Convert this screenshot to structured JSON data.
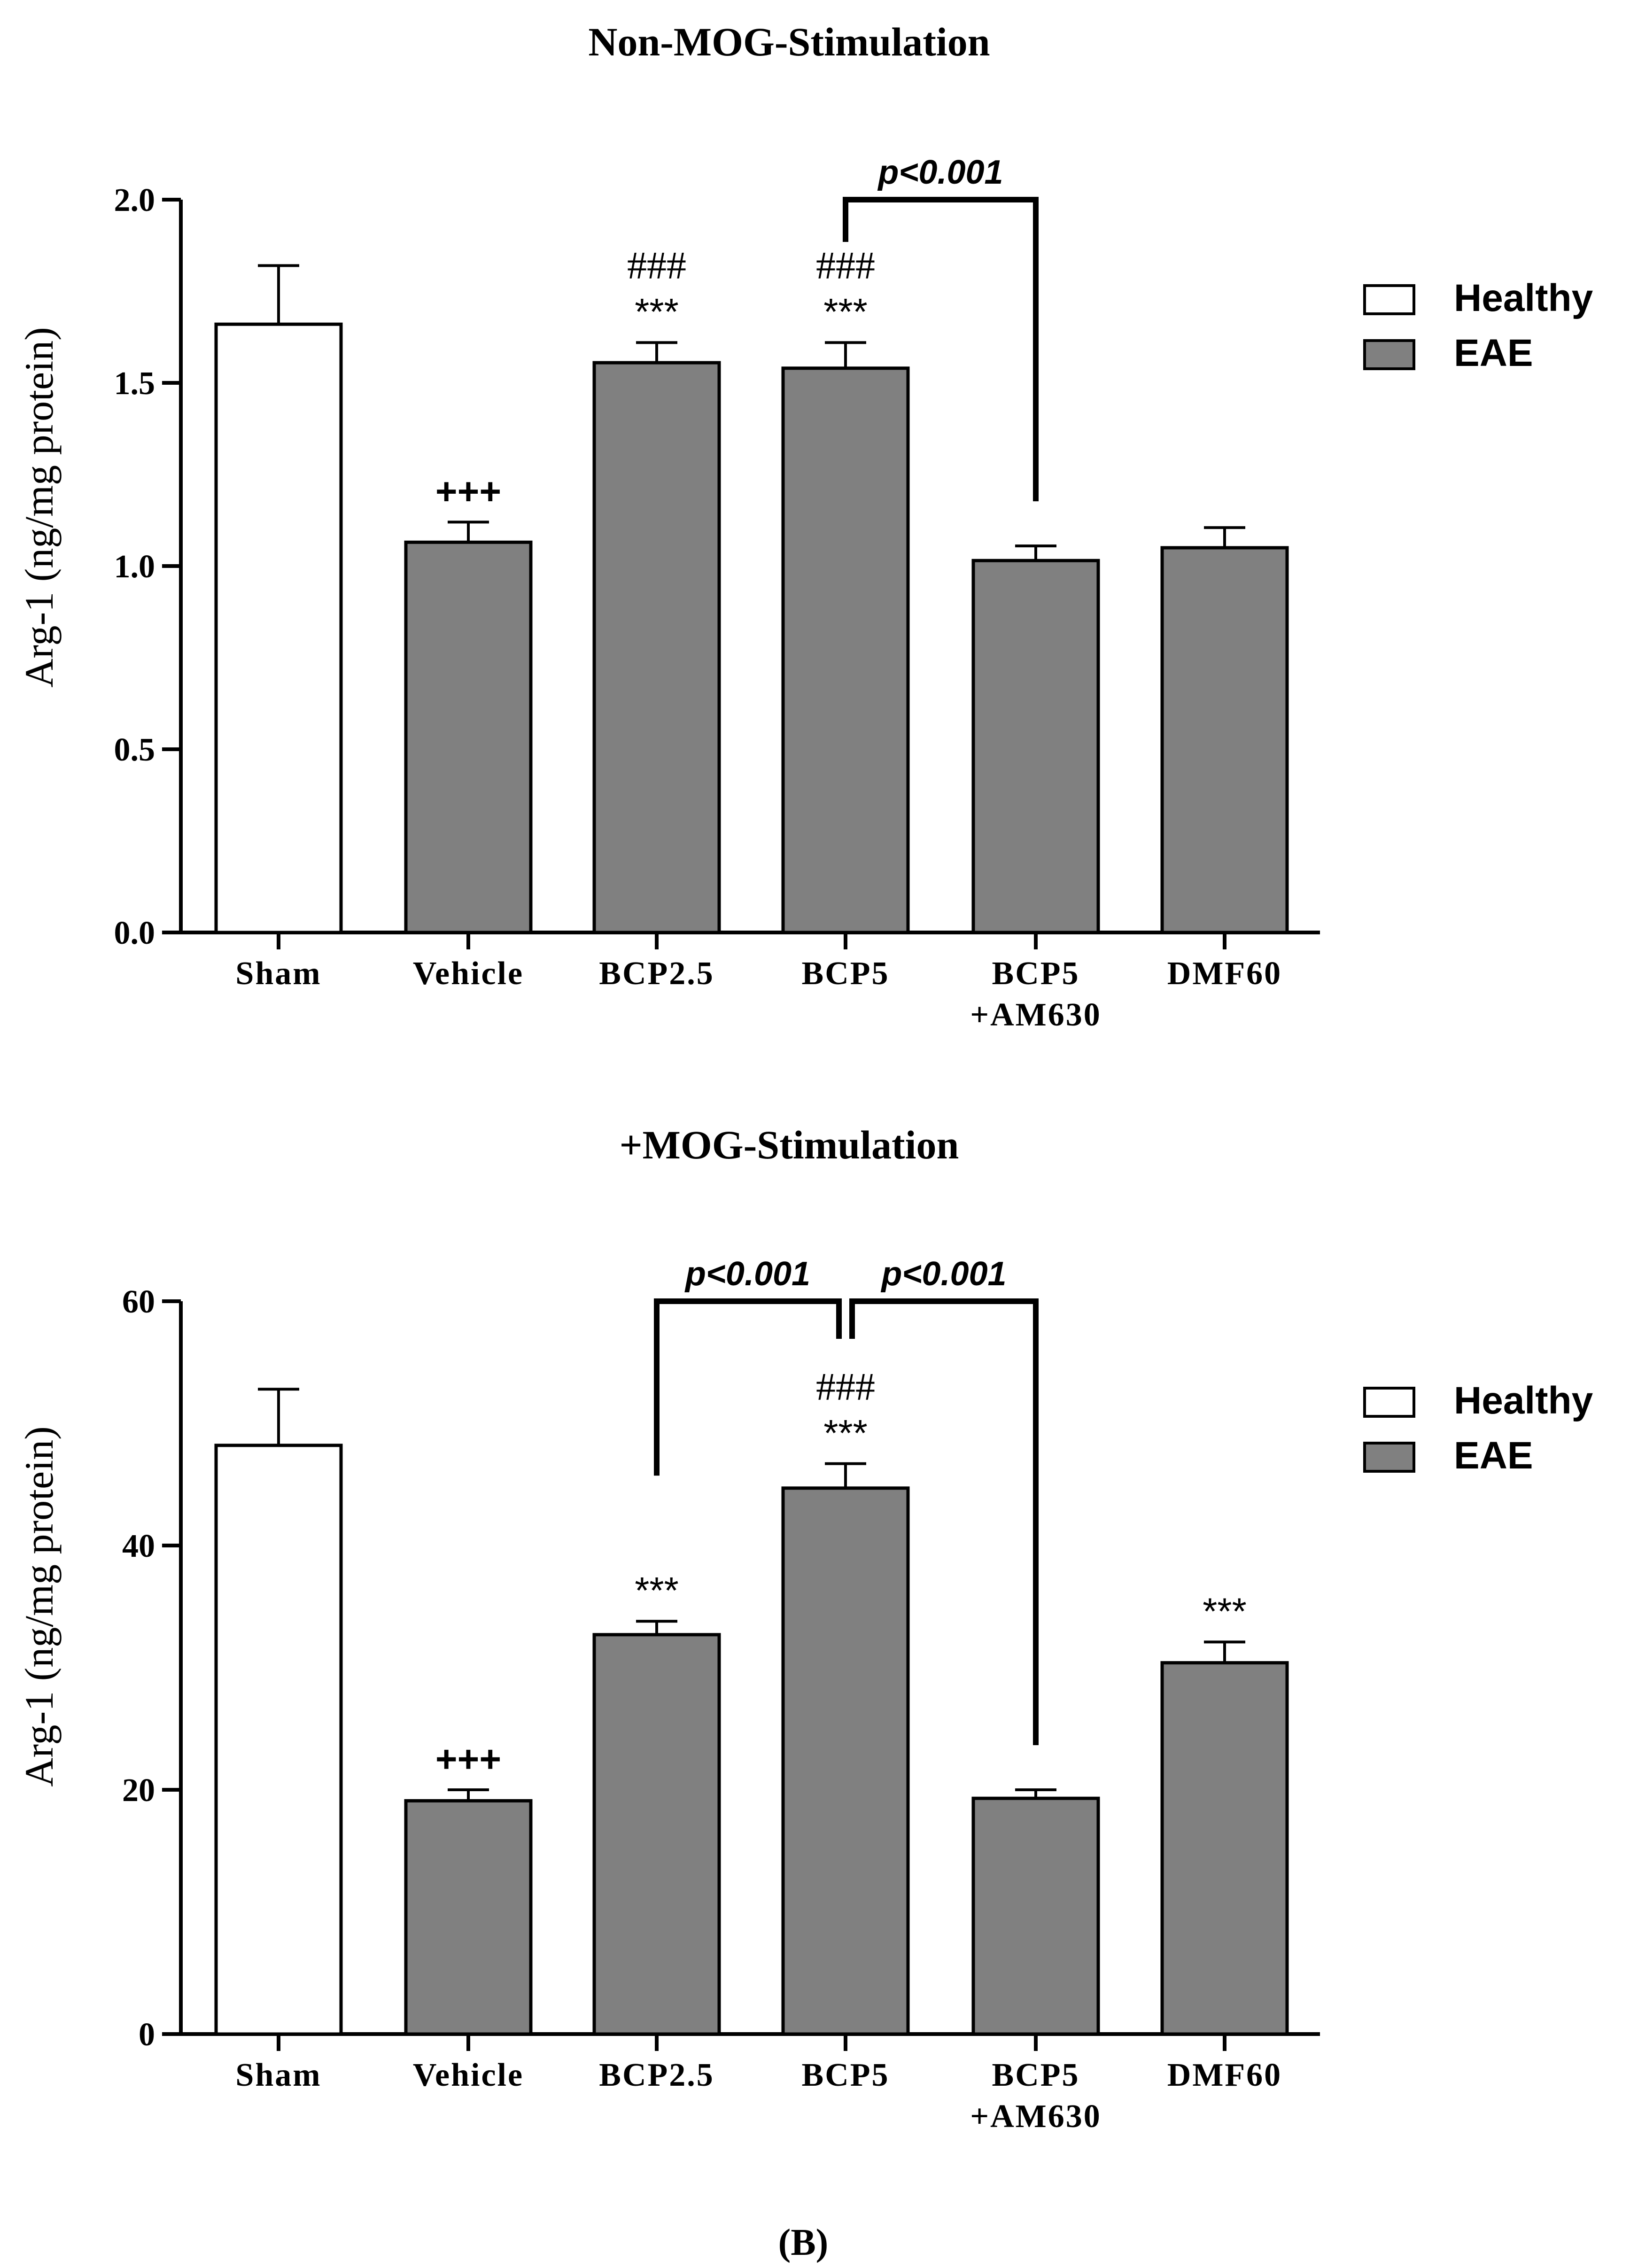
{
  "panel_label": "(B)",
  "chart_data": [
    {
      "type": "bar",
      "title": "Non-MOG-Stimulation",
      "ylabel": "Arg-1 (ng/mg protein)",
      "xlabel": "",
      "ylim": [
        0,
        2.0
      ],
      "yticks": [
        "0.0",
        "0.5",
        "1.0",
        "1.5",
        "2.0"
      ],
      "categories": [
        [
          "Sham"
        ],
        [
          "Vehicle"
        ],
        [
          "BCP2.5"
        ],
        [
          "BCP5"
        ],
        [
          "BCP5",
          "+AM630"
        ],
        [
          "DMF60"
        ]
      ],
      "values": [
        1.66,
        1.065,
        1.555,
        1.54,
        1.015,
        1.05
      ],
      "errors": [
        0.16,
        0.055,
        0.055,
        0.07,
        0.04,
        0.055
      ],
      "groups": [
        "Healthy",
        "EAE",
        "EAE",
        "EAE",
        "EAE",
        "EAE"
      ],
      "annotations": [
        [],
        [
          "+++"
        ],
        [
          "***",
          "###"
        ],
        [
          "***",
          "###"
        ],
        [],
        []
      ],
      "brackets": [
        {
          "from": 3,
          "to": 4,
          "label": "p<0.001",
          "top": 2.0
        }
      ],
      "legend": [
        {
          "label": "Healthy",
          "color": "#ffffff"
        },
        {
          "label": "EAE",
          "color": "#808080"
        }
      ],
      "legend_position": "top-right"
    },
    {
      "type": "bar",
      "title": "+MOG-Stimulation",
      "ylabel": "Arg-1 (ng/mg protein)",
      "xlabel": "",
      "ylim": [
        0,
        60
      ],
      "yticks": [
        "0",
        "20",
        "40",
        "60"
      ],
      "categories": [
        [
          "Sham"
        ],
        [
          "Vehicle"
        ],
        [
          "BCP2.5"
        ],
        [
          "BCP5"
        ],
        [
          "BCP5",
          "+AM630"
        ],
        [
          "DMF60"
        ]
      ],
      "values": [
        48.2,
        19.1,
        32.7,
        44.7,
        19.3,
        30.4
      ],
      "errors": [
        4.6,
        0.9,
        1.1,
        2.0,
        0.7,
        1.7
      ],
      "groups": [
        "Healthy",
        "EAE",
        "EAE",
        "EAE",
        "EAE",
        "EAE"
      ],
      "annotations": [
        [],
        [
          "+++"
        ],
        [
          "***"
        ],
        [
          "***",
          "###"
        ],
        [],
        [
          "***"
        ]
      ],
      "brackets": [
        {
          "from": 2,
          "to": 3,
          "label": "p<0.001",
          "top": 60
        },
        {
          "from": 3,
          "to": 4,
          "label": "p<0.001",
          "top": 60
        }
      ],
      "legend": [
        {
          "label": "Healthy",
          "color": "#ffffff"
        },
        {
          "label": "EAE",
          "color": "#808080"
        }
      ],
      "legend_position": "top-right"
    }
  ]
}
